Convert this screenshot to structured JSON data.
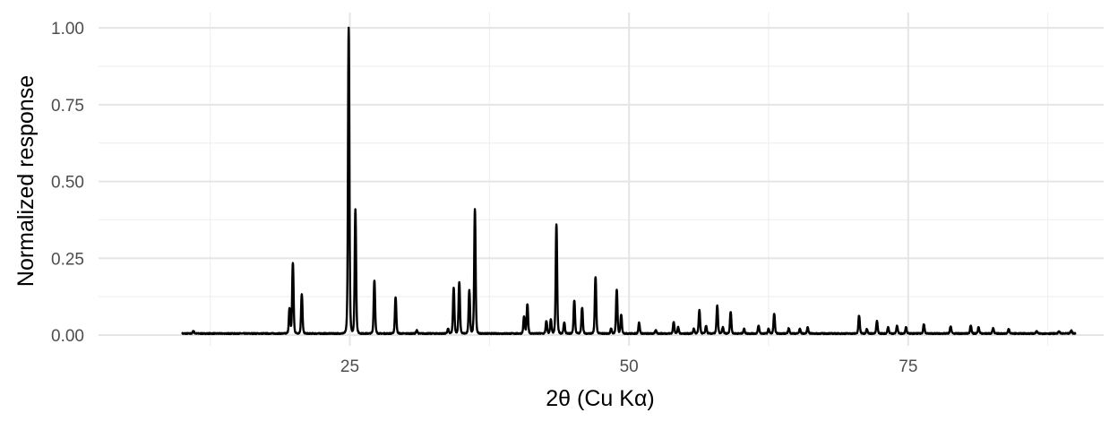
{
  "chart_data": {
    "type": "line",
    "title": "",
    "xlabel": "2θ (Cu Kα)",
    "ylabel": "Normalized response",
    "xlim": [
      2.5,
      92.5
    ],
    "ylim": [
      -0.035,
      1.05
    ],
    "grid": true,
    "legend": "none",
    "x_major_ticks": [
      25,
      50,
      75
    ],
    "x_major_tick_labels": [
      "25",
      "50",
      "75"
    ],
    "x_minor_ticks": [
      12.5,
      37.5,
      62.5,
      87.5
    ],
    "y_major_ticks": [
      0,
      0.25,
      0.5,
      0.75,
      1.0
    ],
    "y_major_tick_labels": [
      "0.00",
      "0.25",
      "0.50",
      "0.75",
      "1.00"
    ],
    "y_minor_ticks": [
      0.125,
      0.375,
      0.625,
      0.875
    ],
    "colors": {
      "line": "#000000",
      "grid_major": "#e5e5e5",
      "grid_minor": "#f0f0f0"
    },
    "baseline": 0.005,
    "x_range": [
      10,
      90
    ],
    "peaks": [
      {
        "x": 11.0,
        "y": 0.013
      },
      {
        "x": 19.6,
        "y": 0.085
      },
      {
        "x": 19.9,
        "y": 0.235
      },
      {
        "x": 20.7,
        "y": 0.132
      },
      {
        "x": 24.9,
        "y": 1.0
      },
      {
        "x": 25.5,
        "y": 0.408
      },
      {
        "x": 27.2,
        "y": 0.178
      },
      {
        "x": 29.1,
        "y": 0.123
      },
      {
        "x": 31.0,
        "y": 0.015
      },
      {
        "x": 33.8,
        "y": 0.02
      },
      {
        "x": 34.3,
        "y": 0.153
      },
      {
        "x": 34.8,
        "y": 0.172
      },
      {
        "x": 35.7,
        "y": 0.145
      },
      {
        "x": 36.2,
        "y": 0.408
      },
      {
        "x": 40.6,
        "y": 0.06
      },
      {
        "x": 40.9,
        "y": 0.1
      },
      {
        "x": 42.6,
        "y": 0.045
      },
      {
        "x": 43.0,
        "y": 0.05
      },
      {
        "x": 43.5,
        "y": 0.36
      },
      {
        "x": 44.2,
        "y": 0.04
      },
      {
        "x": 45.1,
        "y": 0.113
      },
      {
        "x": 45.8,
        "y": 0.09
      },
      {
        "x": 47.0,
        "y": 0.19
      },
      {
        "x": 48.4,
        "y": 0.02
      },
      {
        "x": 48.9,
        "y": 0.148
      },
      {
        "x": 49.3,
        "y": 0.065
      },
      {
        "x": 50.9,
        "y": 0.04
      },
      {
        "x": 52.4,
        "y": 0.015
      },
      {
        "x": 54.0,
        "y": 0.042
      },
      {
        "x": 54.4,
        "y": 0.025
      },
      {
        "x": 55.8,
        "y": 0.02
      },
      {
        "x": 56.3,
        "y": 0.08
      },
      {
        "x": 56.9,
        "y": 0.03
      },
      {
        "x": 57.9,
        "y": 0.095
      },
      {
        "x": 58.4,
        "y": 0.025
      },
      {
        "x": 59.1,
        "y": 0.075
      },
      {
        "x": 60.3,
        "y": 0.02
      },
      {
        "x": 61.6,
        "y": 0.03
      },
      {
        "x": 62.5,
        "y": 0.02
      },
      {
        "x": 63.0,
        "y": 0.068
      },
      {
        "x": 64.3,
        "y": 0.022
      },
      {
        "x": 65.3,
        "y": 0.02
      },
      {
        "x": 66.0,
        "y": 0.025
      },
      {
        "x": 70.6,
        "y": 0.063
      },
      {
        "x": 71.3,
        "y": 0.02
      },
      {
        "x": 72.2,
        "y": 0.045
      },
      {
        "x": 73.2,
        "y": 0.025
      },
      {
        "x": 74.0,
        "y": 0.03
      },
      {
        "x": 74.8,
        "y": 0.025
      },
      {
        "x": 76.4,
        "y": 0.035
      },
      {
        "x": 78.8,
        "y": 0.028
      },
      {
        "x": 80.6,
        "y": 0.032
      },
      {
        "x": 81.3,
        "y": 0.025
      },
      {
        "x": 82.6,
        "y": 0.022
      },
      {
        "x": 84.0,
        "y": 0.02
      },
      {
        "x": 86.5,
        "y": 0.012
      },
      {
        "x": 88.5,
        "y": 0.012
      },
      {
        "x": 89.6,
        "y": 0.015
      }
    ]
  }
}
